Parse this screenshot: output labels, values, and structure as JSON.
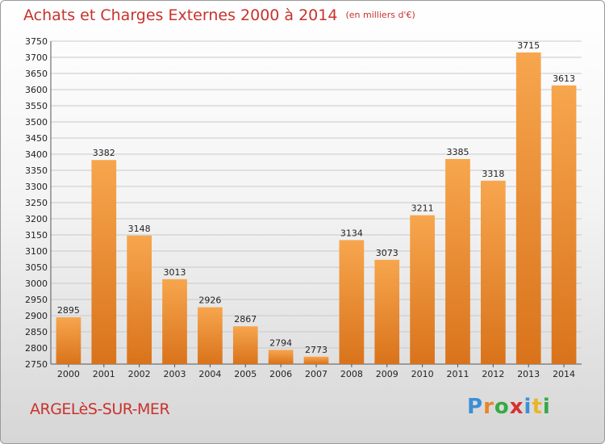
{
  "title": "Achats et Charges Externes 2000 à 2014",
  "unit": "(en milliers d'€)",
  "city": "ARGELèS-SUR-MER",
  "brand": {
    "letters": [
      "P",
      "r",
      "o",
      "x",
      "i",
      "t",
      "i"
    ],
    "colors": [
      "#3b8fd6",
      "#e8842a",
      "#39a845",
      "#d6322e",
      "#3b8fd6",
      "#e8b52a",
      "#39a845"
    ]
  },
  "chart_data": {
    "type": "bar",
    "title": "Achats et Charges Externes 2000 à 2014",
    "subtitle": "(en milliers d'€)",
    "categories": [
      "2000",
      "2001",
      "2002",
      "2003",
      "2004",
      "2005",
      "2006",
      "2007",
      "2008",
      "2009",
      "2010",
      "2011",
      "2012",
      "2013",
      "2014"
    ],
    "values": [
      2895,
      3382,
      3148,
      3013,
      2926,
      2867,
      2794,
      2773,
      3134,
      3073,
      3211,
      3385,
      3318,
      3715,
      3613
    ],
    "ylim": [
      2750,
      3750
    ],
    "ytick_step": 50,
    "grid": true,
    "bar_color": "#f39a3c"
  }
}
